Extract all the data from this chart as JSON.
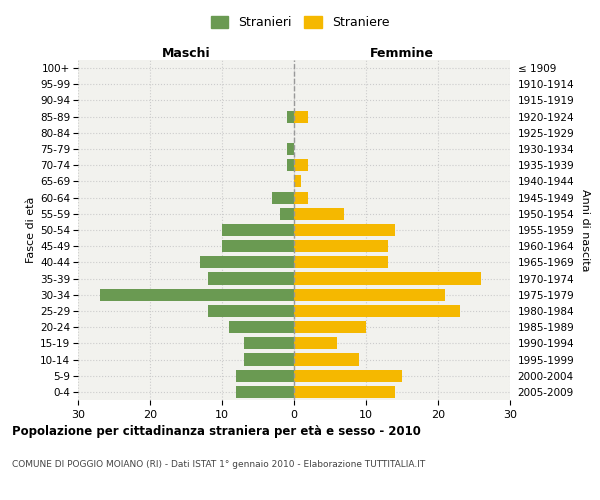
{
  "age_groups": [
    "100+",
    "95-99",
    "90-94",
    "85-89",
    "80-84",
    "75-79",
    "70-74",
    "65-69",
    "60-64",
    "55-59",
    "50-54",
    "45-49",
    "40-44",
    "35-39",
    "30-34",
    "25-29",
    "20-24",
    "15-19",
    "10-14",
    "5-9",
    "0-4"
  ],
  "birth_years": [
    "≤ 1909",
    "1910-1914",
    "1915-1919",
    "1920-1924",
    "1925-1929",
    "1930-1934",
    "1935-1939",
    "1940-1944",
    "1945-1949",
    "1950-1954",
    "1955-1959",
    "1960-1964",
    "1965-1969",
    "1970-1974",
    "1975-1979",
    "1980-1984",
    "1985-1989",
    "1990-1994",
    "1995-1999",
    "2000-2004",
    "2005-2009"
  ],
  "males": [
    0,
    0,
    0,
    1,
    0,
    1,
    1,
    0,
    3,
    2,
    10,
    10,
    13,
    12,
    27,
    12,
    9,
    7,
    7,
    8,
    8
  ],
  "females": [
    0,
    0,
    0,
    2,
    0,
    0,
    2,
    1,
    2,
    7,
    14,
    13,
    13,
    26,
    21,
    23,
    10,
    6,
    9,
    15,
    14
  ],
  "xlim": 30,
  "male_color": "#6a9a52",
  "female_color": "#f5b800",
  "grid_color": "#cccccc",
  "center_line_color": "#999999",
  "title": "Popolazione per cittadinanza straniera per età e sesso - 2010",
  "subtitle": "COMUNE DI POGGIO MOIANO (RI) - Dati ISTAT 1° gennaio 2010 - Elaborazione TUTTITALIA.IT",
  "xlabel_left": "Maschi",
  "xlabel_right": "Femmine",
  "ylabel_left": "Fasce di età",
  "ylabel_right": "Anni di nascita",
  "legend_male": "Stranieri",
  "legend_female": "Straniere",
  "bg_color": "#ffffff",
  "plot_bg_color": "#f2f2ee"
}
